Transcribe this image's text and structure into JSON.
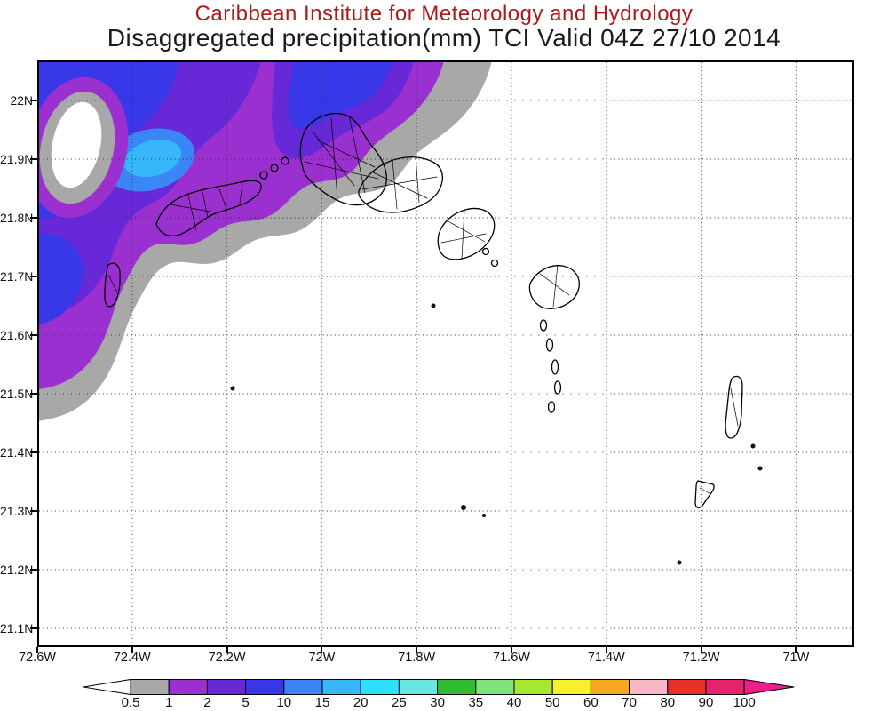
{
  "title": {
    "line1": "Caribbean Institute for Meteorology and Hydrology",
    "line2": "Disaggregated precipitation(mm) TCI Valid 04Z 27/10 2014"
  },
  "colors": {
    "title_line1": "#b01818",
    "title_line2": "#1a1a1a",
    "map_background": "#ffffff",
    "frame": "#000000",
    "gridline": "#333333",
    "coastline": "#000000"
  },
  "axes": {
    "lat_labels": [
      "22N",
      "21.9N",
      "21.8N",
      "21.7N",
      "21.6N",
      "21.5N",
      "21.4N",
      "21.3N",
      "21.2N",
      "21.1N"
    ],
    "lon_labels": [
      "72.6W",
      "72.4W",
      "72.2W",
      "72W",
      "71.8W",
      "71.6W",
      "71.4W",
      "71.2W",
      "71W"
    ]
  },
  "colorbar": {
    "tick_labels": [
      "0.5",
      "1",
      "2",
      "5",
      "10",
      "15",
      "20",
      "25",
      "30",
      "35",
      "40",
      "50",
      "60",
      "70",
      "80",
      "90",
      "100"
    ],
    "segment_colors": [
      "#a8a8a8",
      "#9b30d0",
      "#6728d8",
      "#3838e8",
      "#3a86f7",
      "#37b6fa",
      "#2ee0fb",
      "#66e8e0",
      "#2fbe2f",
      "#7ee37e",
      "#a6e82e",
      "#f7f12d",
      "#f7a823",
      "#f7b8c8",
      "#e8302a",
      "#e4246a"
    ],
    "left_arrow_color": "#ffffff",
    "right_arrow_color": "#ec1e8c"
  },
  "chart_data": {
    "type": "filled-contour-map",
    "title": "Disaggregated precipitation(mm) TCI Valid 04Z 27/10 2014",
    "units": "mm",
    "x_ticks": [
      "72.6W",
      "72.4W",
      "72.2W",
      "72W",
      "71.8W",
      "71.6W",
      "71.4W",
      "71.2W",
      "71W"
    ],
    "y_ticks": [
      "22N",
      "21.9N",
      "21.8N",
      "21.7N",
      "21.6N",
      "21.5N",
      "21.4N",
      "21.3N",
      "21.2N",
      "21.1N"
    ],
    "levels": [
      0.5,
      1,
      2,
      5,
      10,
      15,
      20,
      25,
      30,
      35,
      40,
      50,
      60,
      70,
      80,
      90,
      100
    ],
    "palette": [
      "#a8a8a8",
      "#9b30d0",
      "#6728d8",
      "#3838e8",
      "#3a86f7",
      "#37b6fa",
      "#2ee0fb",
      "#66e8e0",
      "#2fbe2f",
      "#7ee37e",
      "#a6e82e",
      "#f7f12d",
      "#f7a823",
      "#f7b8c8",
      "#e8302a",
      "#e4246a"
    ],
    "visible_shaded_levels_mm": [
      "0.5-1",
      "1-2",
      "2-5",
      "5-10",
      "10-15",
      "15-20"
    ],
    "notes": "Precipitation shading over northwest of domain; Turks and Caicos Islands coastlines drawn in black; dotted lat/lon graticule."
  }
}
